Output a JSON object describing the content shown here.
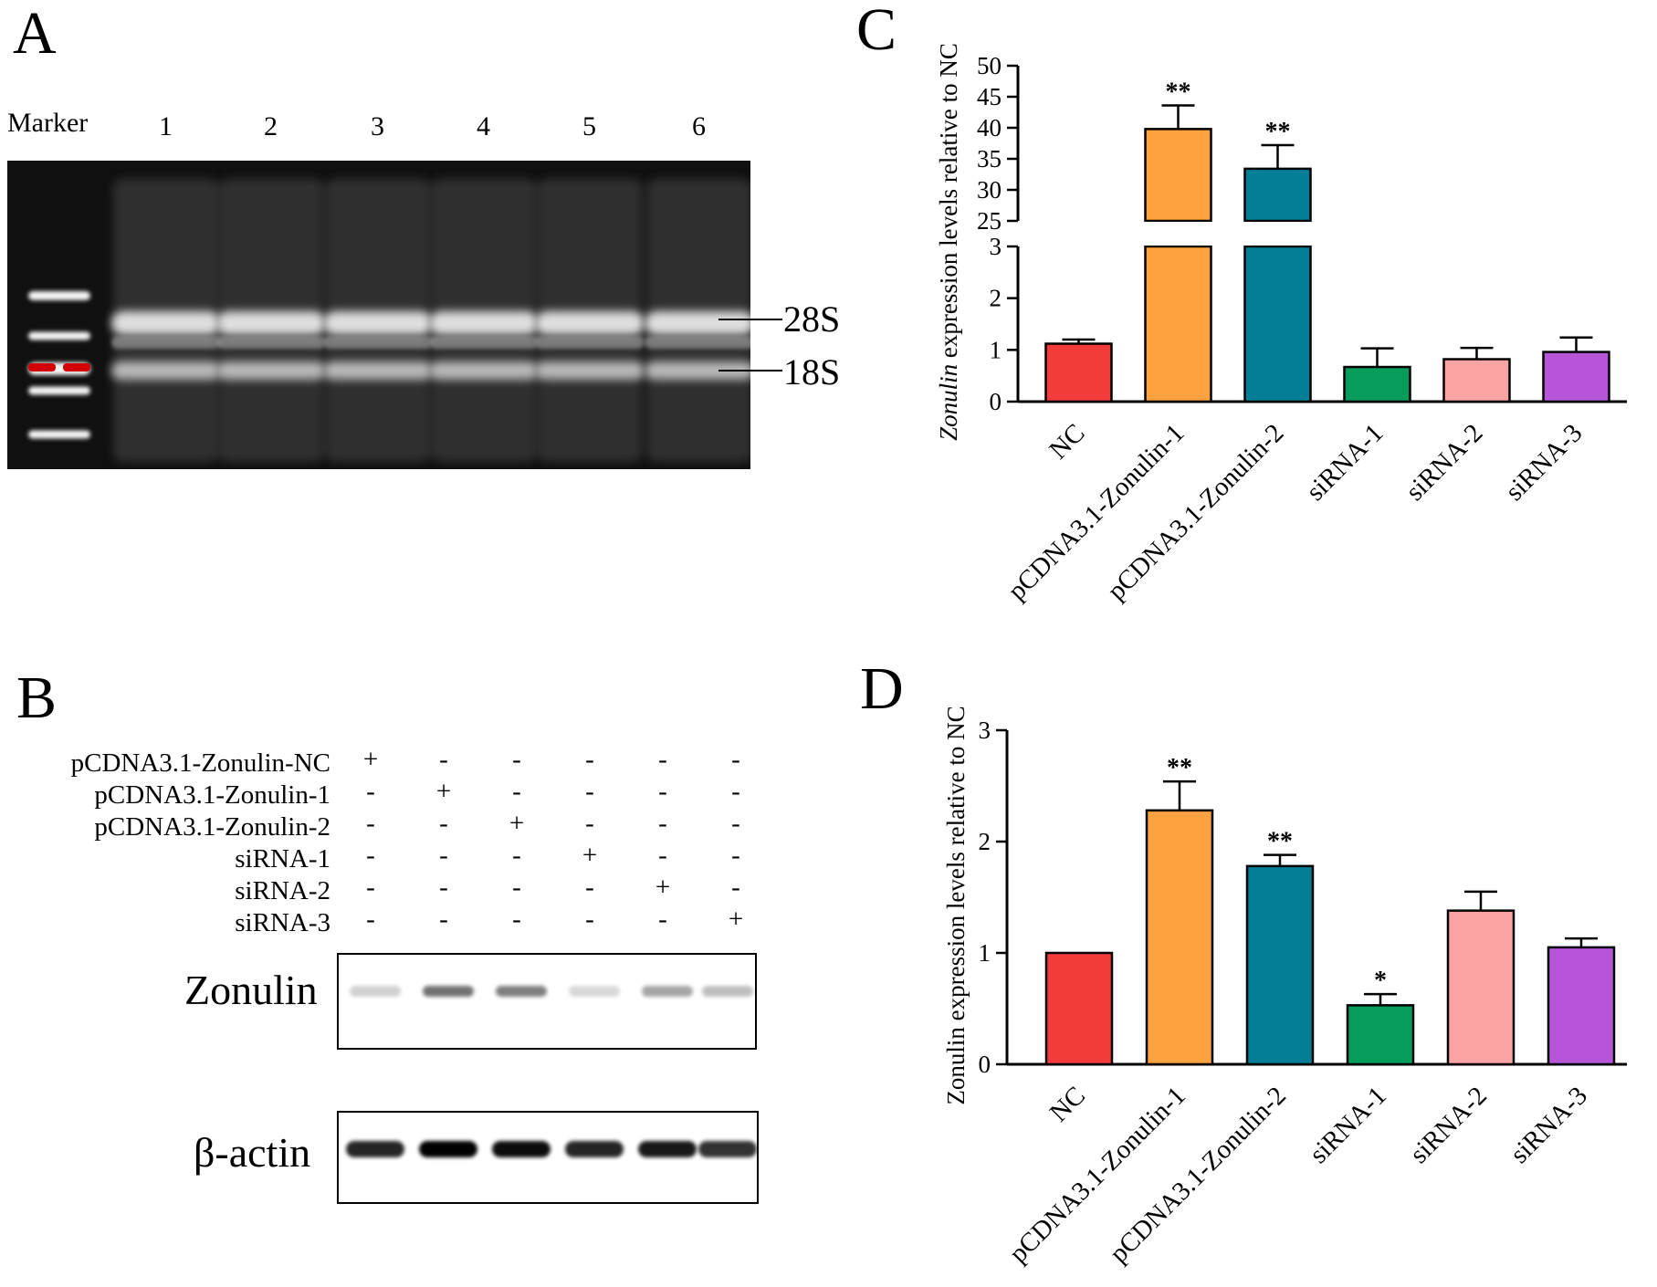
{
  "panels": {
    "a": {
      "letter": "A"
    },
    "b": {
      "letter": "B"
    },
    "c": {
      "letter": "C"
    },
    "d": {
      "letter": "D"
    }
  },
  "gel": {
    "marker_label": "Marker",
    "lane_labels": [
      "1",
      "2",
      "3",
      "4",
      "5",
      "6"
    ],
    "band_labels": [
      "28S",
      "18S"
    ],
    "colors": {
      "background": "#101010",
      "band": "#e8e8e8",
      "marker_highlight": "#d40000"
    }
  },
  "western": {
    "rows": [
      {
        "label": "pCDNA3.1-Zonulin-NC",
        "signs": [
          "+",
          "-",
          "-",
          "-",
          "-",
          "-"
        ]
      },
      {
        "label": "pCDNA3.1-Zonulin-1",
        "signs": [
          "-",
          "+",
          "-",
          "-",
          "-",
          "-"
        ]
      },
      {
        "label": "pCDNA3.1-Zonulin-2",
        "signs": [
          "-",
          "-",
          "+",
          "-",
          "-",
          "-"
        ]
      },
      {
        "label": "siRNA-1",
        "signs": [
          "-",
          "-",
          "-",
          "+",
          "-",
          "-"
        ]
      },
      {
        "label": "siRNA-2",
        "signs": [
          "-",
          "-",
          "-",
          "-",
          "+",
          "-"
        ]
      },
      {
        "label": "siRNA-3",
        "signs": [
          "-",
          "-",
          "-",
          "-",
          "-",
          "+"
        ]
      }
    ],
    "blots": [
      {
        "name": "Zonulin",
        "band_intensity": [
          0.18,
          0.55,
          0.5,
          0.15,
          0.35,
          0.25
        ]
      },
      {
        "name": "β-actin",
        "band_intensity": [
          0.85,
          1.0,
          0.95,
          0.85,
          0.9,
          0.8
        ]
      }
    ]
  },
  "chart_data": [
    {
      "panel": "C",
      "type": "bar",
      "ylabel_italic": "Zonulin",
      "ylabel_rest": " expression levels relative to NC",
      "categories": [
        "NC",
        "pCDNA3.1-Zonulin-1",
        "pCDNA3.1-Zonulin-2",
        "siRNA-1",
        "siRNA-2",
        "siRNA-3"
      ],
      "values": [
        1.12,
        39.8,
        33.4,
        0.67,
        0.82,
        0.96
      ],
      "errors": [
        0.08,
        3.8,
        3.8,
        0.36,
        0.22,
        0.28
      ],
      "significance": [
        "",
        "**",
        "**",
        "",
        "",
        ""
      ],
      "axis_break": {
        "lower_range": [
          0,
          3
        ],
        "upper_range": [
          25,
          50
        ]
      },
      "lower_ticks": [
        "0",
        "1",
        "2",
        "3"
      ],
      "upper_ticks": [
        "25",
        "30",
        "35",
        "40",
        "45",
        "50"
      ],
      "colors": [
        "#f23c3c",
        "#fca241",
        "#047d96",
        "#079b5c",
        "#fca4a4",
        "#b755d8"
      ]
    },
    {
      "panel": "D",
      "type": "bar",
      "ylabel": "Zonulin expression levels relative to NC",
      "categories": [
        "NC",
        "pCDNA3.1-Zonulin-1",
        "pCDNA3.1-Zonulin-2",
        "siRNA-1",
        "siRNA-2",
        "siRNA-3"
      ],
      "values": [
        1.0,
        2.28,
        1.78,
        0.53,
        1.38,
        1.05
      ],
      "errors": [
        0.0,
        0.26,
        0.1,
        0.1,
        0.17,
        0.08
      ],
      "significance": [
        "",
        "**",
        "**",
        "*",
        "",
        ""
      ],
      "ylim": [
        0,
        3
      ],
      "ticks": [
        "0",
        "1",
        "2",
        "3"
      ],
      "colors": [
        "#f23c3c",
        "#fca241",
        "#047d96",
        "#079b5c",
        "#fca4a4",
        "#b755d8"
      ]
    }
  ]
}
